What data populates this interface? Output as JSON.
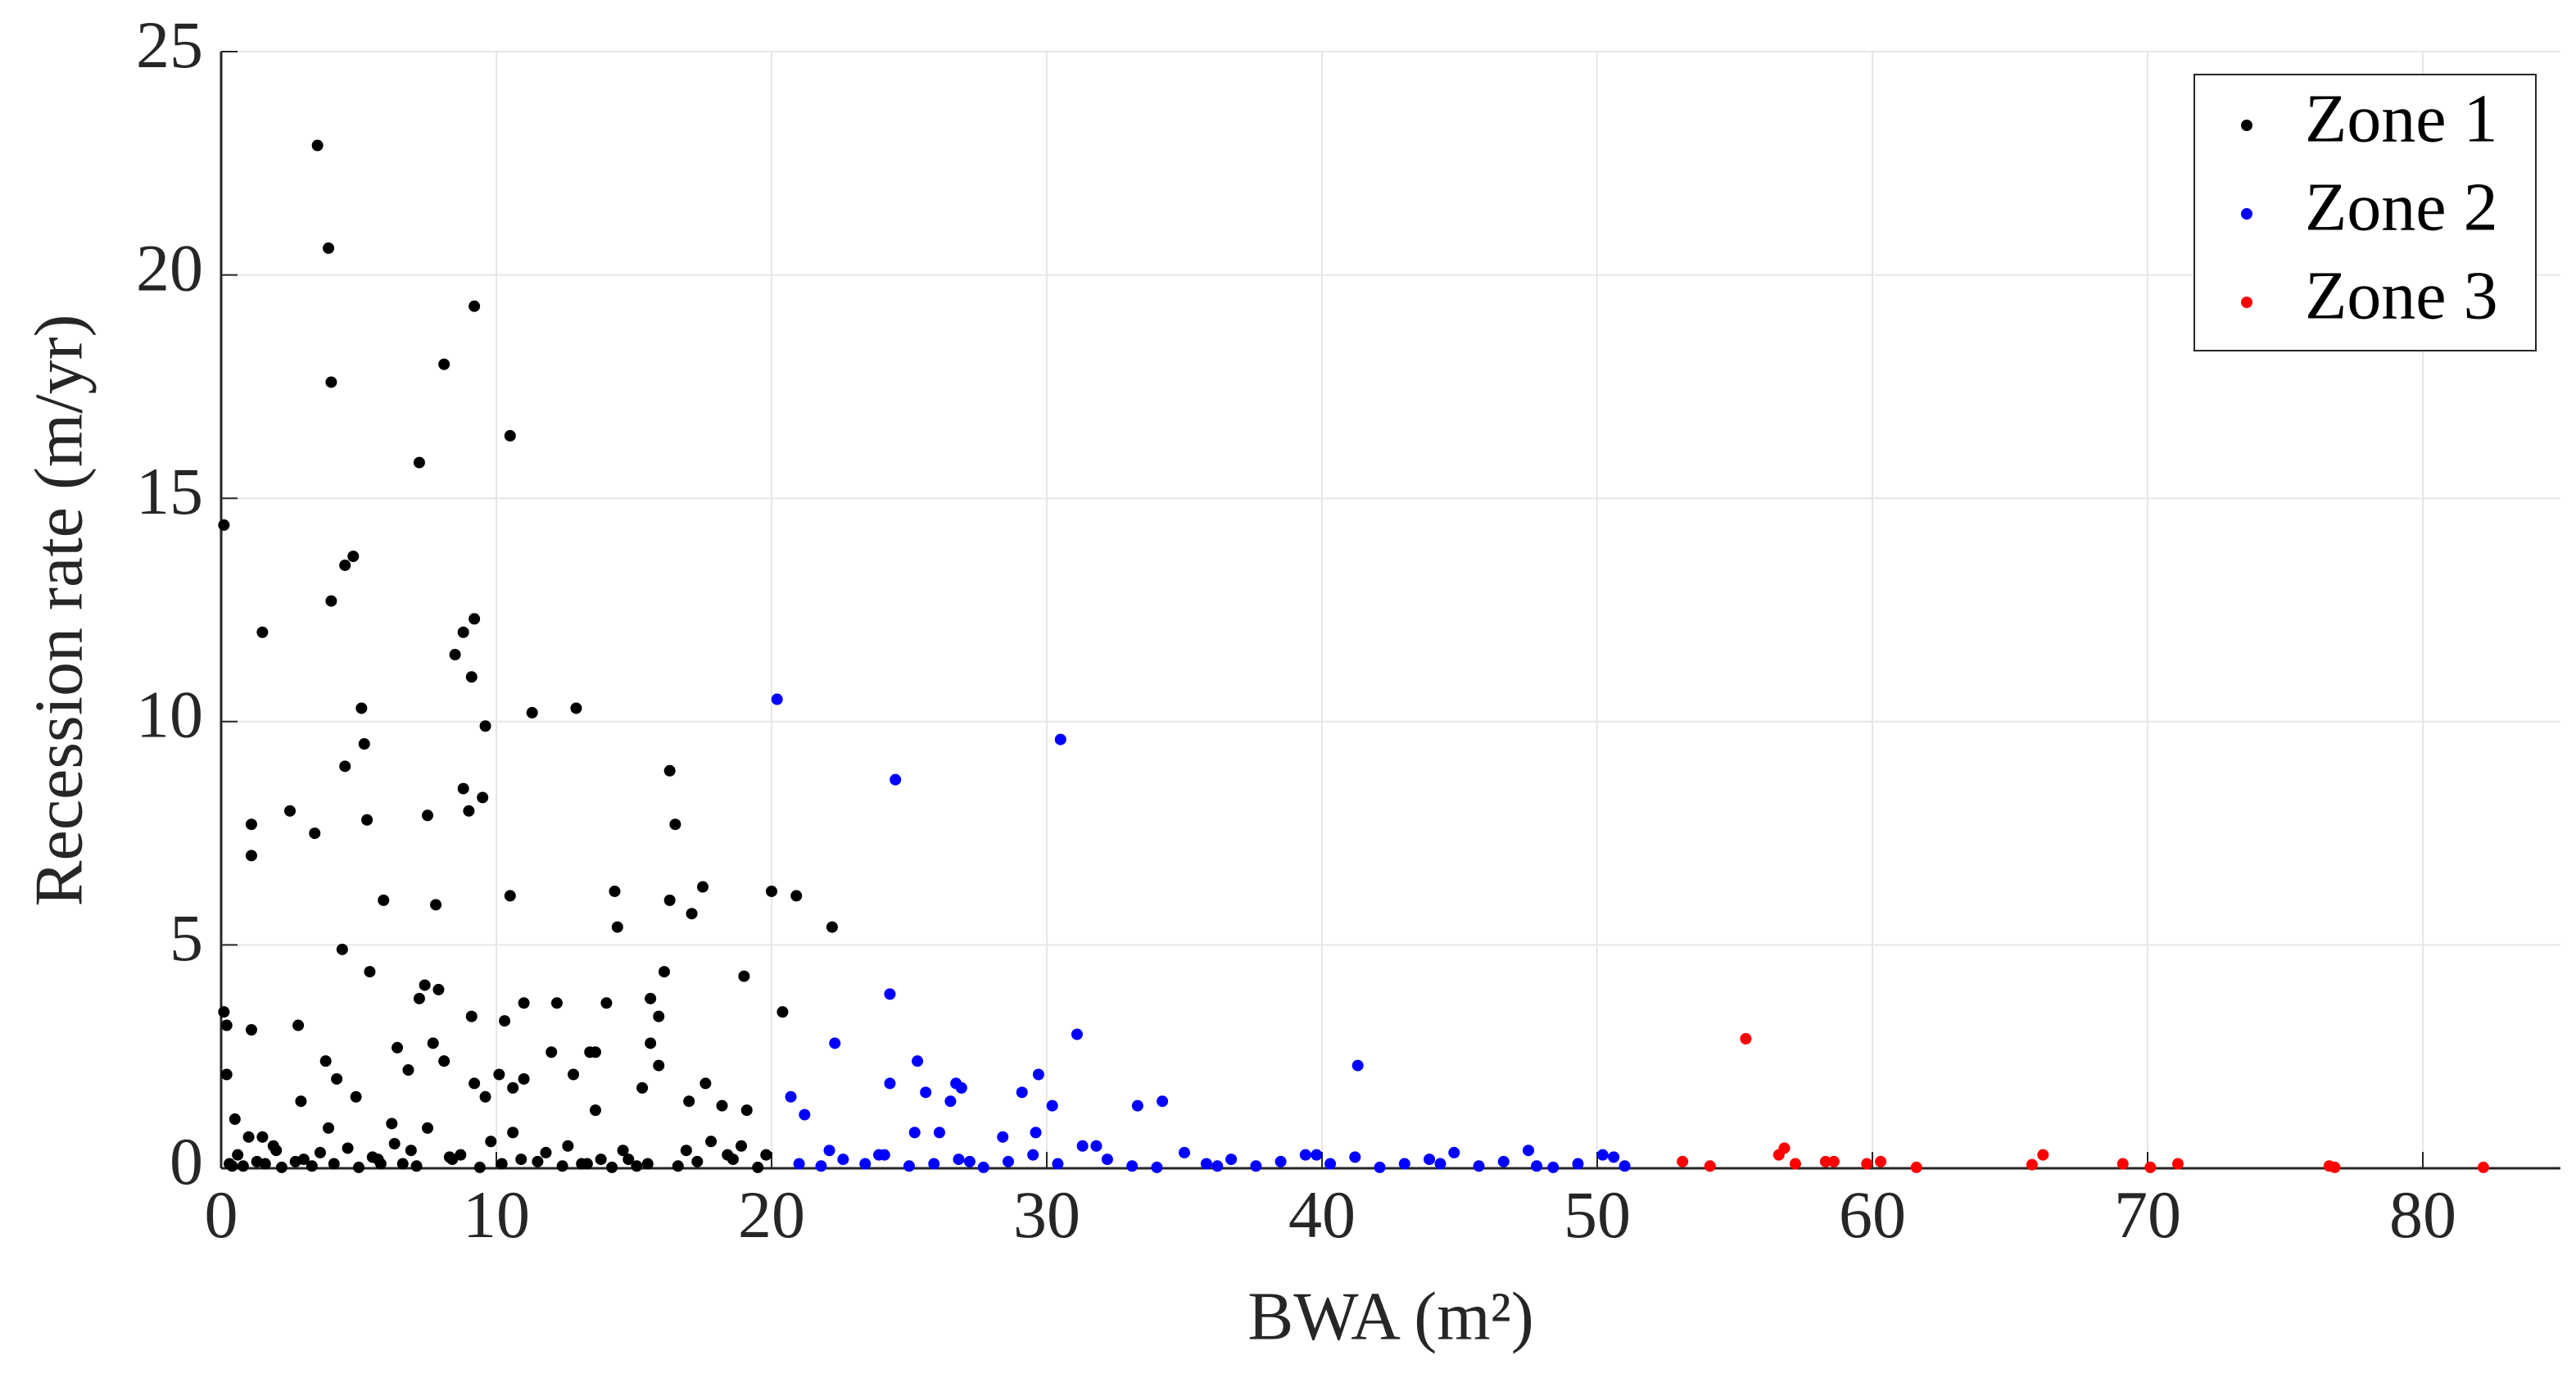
{
  "chart_data": {
    "type": "scatter",
    "xlabel": "BWA (m²)",
    "ylabel": "Recession rate (m/yr)",
    "xlim": [
      0,
      85
    ],
    "ylim": [
      0,
      25
    ],
    "xticks": [
      0,
      10,
      20,
      30,
      40,
      50,
      60,
      70,
      80
    ],
    "yticks": [
      0,
      5,
      10,
      15,
      20,
      25
    ],
    "grid": true,
    "legend": "upper right",
    "series": [
      {
        "name": "Zone 1",
        "color": "#000000",
        "x": [
          3.5,
          3.9,
          9.2,
          8.1,
          4,
          10.5,
          7.2,
          0.1,
          4.8,
          4.5,
          4,
          9.2,
          1.5,
          8.8,
          8.5,
          9.1,
          5.1,
          11.3,
          12.9,
          9.6,
          5.2,
          4.5,
          16.3,
          8.8,
          9.5,
          2.5,
          9,
          7.5,
          5.3,
          1.1,
          16.5,
          3.4,
          1.1,
          17.5,
          20,
          14.3,
          10.5,
          20.9,
          5.9,
          16.3,
          7.8,
          17.1,
          14.4,
          22.2,
          4.4,
          16.1,
          5.4,
          19,
          7.4,
          7.9,
          7.2,
          15.6,
          11,
          12.2,
          14,
          0.1,
          20.4,
          9.1,
          15.9,
          10.3,
          2.8,
          0.2,
          1.1,
          7.7,
          15.6,
          6.4,
          13.4,
          12,
          13.6,
          3.8,
          8.1,
          15.9,
          6.8,
          0.2,
          10.1,
          12.8,
          4.2,
          11,
          17.6,
          9.2,
          15.3,
          10.6,
          13.6,
          2.9,
          4.9,
          17,
          9.6,
          18.2,
          19.1,
          0.5,
          6.2,
          10.6,
          3.9,
          1,
          1.5,
          7.5,
          0.3,
          0.8,
          1.6,
          2.2,
          2.7,
          3.3,
          4.1,
          5,
          5.7,
          6.6,
          7.1,
          8.4,
          9.4,
          10.2,
          11.5,
          12.4,
          13.1,
          14.2,
          14.8,
          15.5,
          16.6,
          17.3,
          18.4,
          19.5,
          0.6,
          2,
          3.6,
          5.5,
          6.9,
          8.7,
          11.8,
          13.8,
          16.9,
          18.9,
          0.4,
          1.9,
          4.6,
          6.3,
          9.8,
          12.6,
          14.6,
          17.8,
          19.8,
          1.3,
          3,
          5.8,
          8.3,
          10.9,
          13.3,
          15.1,
          18.6
        ],
        "y": [
          22.9,
          20.6,
          19.3,
          18,
          17.6,
          16.4,
          15.8,
          14.4,
          13.7,
          13.5,
          12.7,
          12.3,
          12,
          12,
          11.5,
          11,
          10.3,
          10.2,
          10.3,
          9.9,
          9.5,
          9,
          8.9,
          8.5,
          8.3,
          8,
          8,
          7.9,
          7.8,
          7.7,
          7.7,
          7.5,
          7,
          6.3,
          6.2,
          6.2,
          6.1,
          6.1,
          6,
          6,
          5.9,
          5.7,
          5.4,
          5.4,
          4.9,
          4.4,
          4.4,
          4.3,
          4.1,
          4,
          3.8,
          3.8,
          3.7,
          3.7,
          3.7,
          3.5,
          3.5,
          3.4,
          3.4,
          3.3,
          3.2,
          3.2,
          3.1,
          2.8,
          2.8,
          2.7,
          2.6,
          2.6,
          2.6,
          2.4,
          2.4,
          2.3,
          2.2,
          2.1,
          2.1,
          2.1,
          2,
          2,
          1.9,
          1.9,
          1.8,
          1.8,
          1.3,
          1.5,
          1.6,
          1.5,
          1.6,
          1.4,
          1.3,
          1.1,
          1,
          0.8,
          0.9,
          0.7,
          0.7,
          0.9,
          0.1,
          0.05,
          0.1,
          0.02,
          0.15,
          0.05,
          0.1,
          0.02,
          0.2,
          0.1,
          0.05,
          0.2,
          0.02,
          0.1,
          0.15,
          0.05,
          0.1,
          0.02,
          0.2,
          0.1,
          0.05,
          0.15,
          0.3,
          0.02,
          0.3,
          0.4,
          0.35,
          0.25,
          0.4,
          0.3,
          0.35,
          0.2,
          0.4,
          0.5,
          0.05,
          0.5,
          0.45,
          0.55,
          0.6,
          0.5,
          0.4,
          0.6,
          0.3,
          0.15,
          0.2,
          0.1,
          0.25,
          0.2,
          0.1,
          0.05,
          0.2
        ]
      },
      {
        "name": "Zone 2",
        "color": "#0000ff",
        "x": [
          20.2,
          30.5,
          24.5,
          24.3,
          31.1,
          22.3,
          41.3,
          25.3,
          29.7,
          26.7,
          24.3,
          26.9,
          29.1,
          20.7,
          34.2,
          33.3,
          30.2,
          26.5,
          25.6,
          21.2,
          25.2,
          28.4,
          29.6,
          26.1,
          21,
          21.8,
          22.6,
          23.4,
          24.1,
          25,
          25.9,
          26.8,
          27.7,
          28.6,
          29.5,
          30.4,
          31.3,
          32.2,
          33.1,
          34,
          35,
          35.8,
          36.7,
          37.6,
          38.5,
          39.4,
          40.3,
          41.2,
          42.1,
          43,
          43.9,
          44.8,
          45.7,
          46.6,
          47.5,
          48.4,
          49.3,
          50.2,
          51,
          22.1,
          23.9,
          27.2,
          31.8,
          36.2,
          39.8,
          44.3,
          47.8,
          50.6
        ],
        "y": [
          10.5,
          9.6,
          8.7,
          3.9,
          3,
          2.8,
          2.3,
          2.4,
          2.1,
          1.9,
          1.9,
          1.8,
          1.7,
          1.6,
          1.5,
          1.4,
          1.4,
          1.5,
          1.7,
          1.2,
          0.8,
          0.7,
          0.8,
          0.8,
          0.1,
          0.05,
          0.2,
          0.1,
          0.3,
          0.05,
          0.1,
          0.2,
          0.02,
          0.15,
          0.3,
          0.1,
          0.5,
          0.2,
          0.05,
          0.02,
          0.35,
          0.1,
          0.2,
          0.05,
          0.15,
          0.3,
          0.1,
          0.25,
          0.02,
          0.1,
          0.2,
          0.35,
          0.05,
          0.15,
          0.4,
          0.02,
          0.1,
          0.3,
          0.05,
          0.4,
          0.3,
          0.15,
          0.5,
          0.05,
          0.3,
          0.1,
          0.05,
          0.25
        ]
      },
      {
        "name": "Zone 3",
        "color": "#ff0000",
        "x": [
          55.4,
          53.1,
          54.1,
          56.6,
          56.8,
          57.2,
          58.3,
          58.6,
          59.8,
          60.3,
          61.6,
          65.8,
          66.2,
          69.1,
          70.1,
          71.1,
          76.6,
          76.8,
          82.2
        ],
        "y": [
          2.9,
          0.15,
          0.05,
          0.3,
          0.45,
          0.1,
          0.15,
          0.15,
          0.1,
          0.15,
          0.02,
          0.08,
          0.3,
          0.1,
          0.02,
          0.1,
          0.05,
          0.02,
          0.02
        ]
      }
    ]
  }
}
